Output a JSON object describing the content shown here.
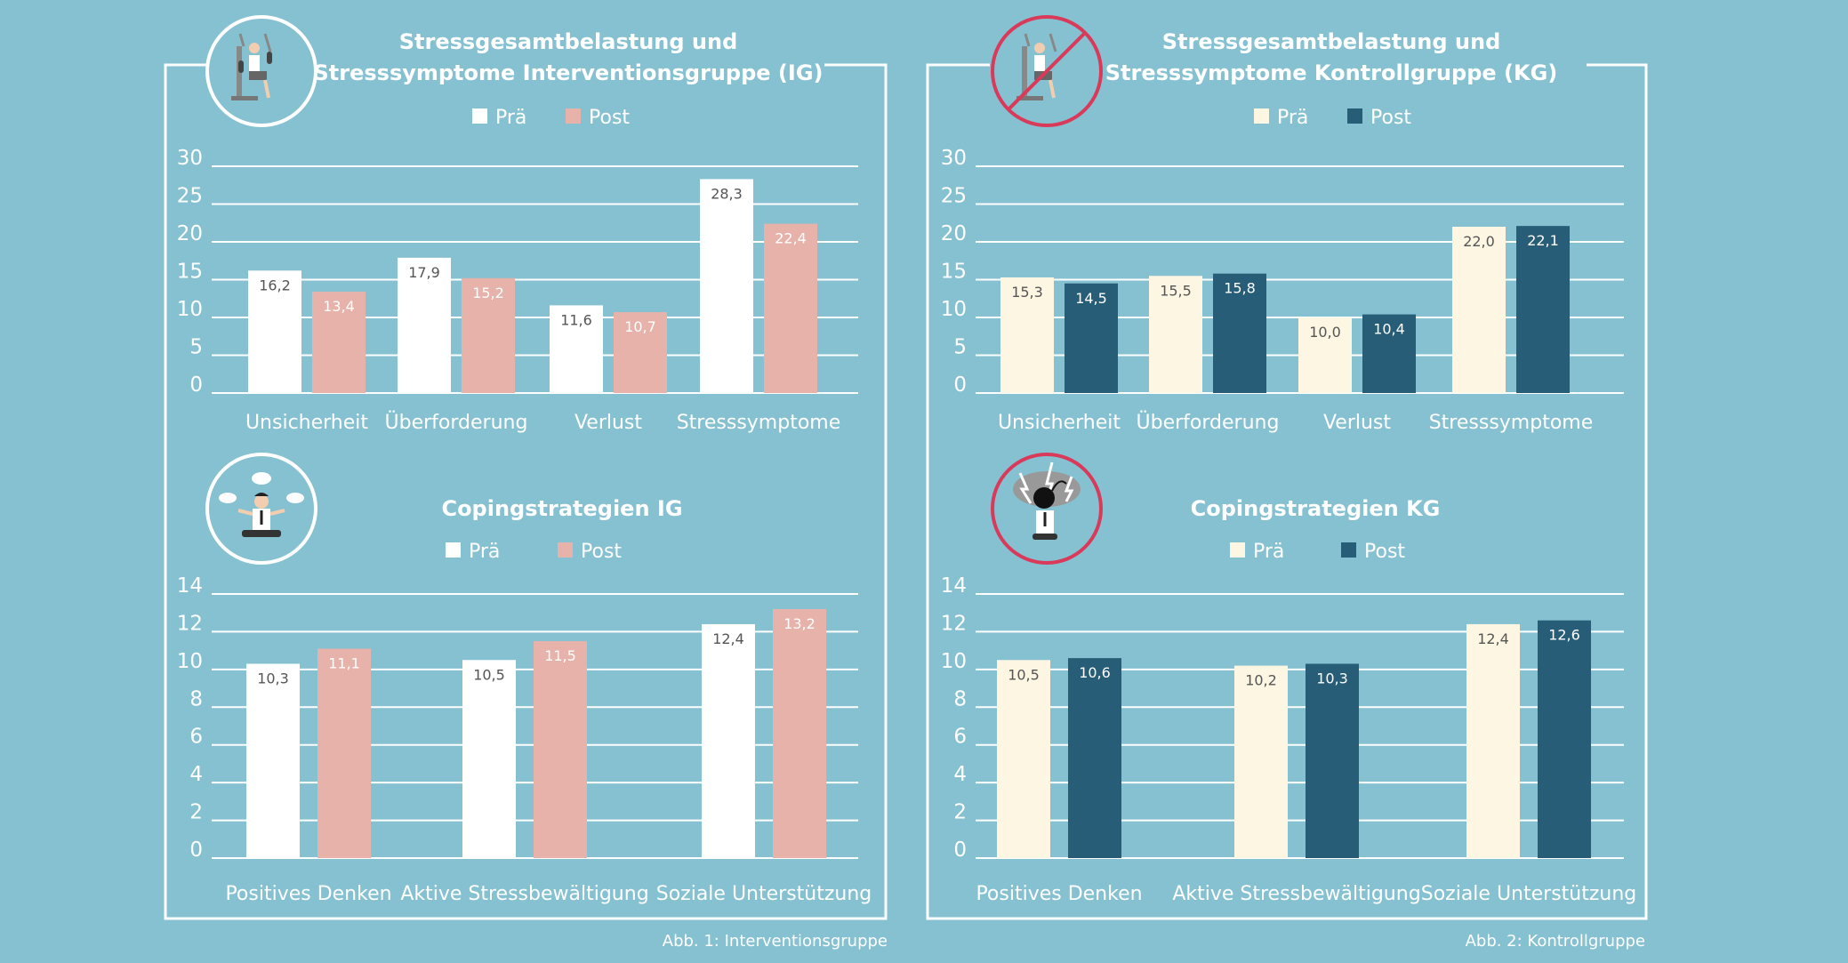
{
  "colors": {
    "background": "#85c1d0",
    "frame": "#ffffff",
    "ig_pre": "#ffffff",
    "ig_post": "#e7b2aa",
    "kg_pre": "#fdf6e3",
    "kg_post": "#275d77",
    "kg_icon_ring": "#d93a5a"
  },
  "captions": {
    "left": "Abb. 1: Interventionsgruppe",
    "right": "Abb. 2: Kontrollgruppe"
  },
  "icons": [
    "fitness-machine-icon",
    "no-fitness-icon",
    "relaxed-meditation-icon",
    "stressed-bomb-head-icon"
  ],
  "chart_data": [
    {
      "type": "bar",
      "title_lines": [
        "Stressgesamtbelastung und",
        "Stresssymptome Interventionsgruppe (IG)"
      ],
      "categories": [
        "Unsicherheit",
        "Überforderung",
        "Verlust",
        "Stresssymptome"
      ],
      "series": [
        {
          "name": "Prä",
          "values": [
            16.2,
            17.9,
            11.6,
            28.3
          ],
          "labels": [
            "16,2",
            "17,9",
            "11,6",
            "28,3"
          ],
          "color": "#ffffff",
          "label_color": "#555555"
        },
        {
          "name": "Post",
          "values": [
            13.4,
            15.2,
            10.7,
            22.4
          ],
          "labels": [
            "13,4",
            "15,2",
            "10,7",
            "22,4"
          ],
          "color": "#e7b2aa",
          "label_color": "#ffffff"
        }
      ],
      "ylim": [
        0,
        30
      ],
      "yticks": [
        "0",
        "5",
        "10",
        "15",
        "20",
        "25",
        "30"
      ],
      "grid": true,
      "legend": "top-center"
    },
    {
      "type": "bar",
      "title_lines": [
        "Stressgesamtbelastung und",
        "Stresssymptome Kontrollgruppe (KG)"
      ],
      "categories": [
        "Unsicherheit",
        "Überforderung",
        "Verlust",
        "Stresssymptome"
      ],
      "series": [
        {
          "name": "Prä",
          "values": [
            15.3,
            15.5,
            10.0,
            22.0
          ],
          "labels": [
            "15,3",
            "15,5",
            "10,0",
            "22,0"
          ],
          "color": "#fdf6e3",
          "label_color": "#555555"
        },
        {
          "name": "Post",
          "values": [
            14.5,
            15.8,
            10.4,
            22.1
          ],
          "labels": [
            "14,5",
            "15,8",
            "10,4",
            "22,1"
          ],
          "color": "#275d77",
          "label_color": "#ffffff"
        }
      ],
      "ylim": [
        0,
        30
      ],
      "yticks": [
        "0",
        "5",
        "10",
        "15",
        "20",
        "25",
        "30"
      ],
      "grid": true,
      "legend": "top-center"
    },
    {
      "type": "bar",
      "title_lines": [
        "Copingstrategien IG"
      ],
      "categories": [
        "Positives Denken",
        "Aktive Stressbewältigung",
        "Soziale Unterstützung"
      ],
      "series": [
        {
          "name": "Prä",
          "values": [
            10.3,
            10.5,
            12.4
          ],
          "labels": [
            "10,3",
            "10,5",
            "12,4"
          ],
          "color": "#ffffff",
          "label_color": "#555555"
        },
        {
          "name": "Post",
          "values": [
            11.1,
            11.5,
            13.2
          ],
          "labels": [
            "11,1",
            "11,5",
            "13,2"
          ],
          "color": "#e7b2aa",
          "label_color": "#ffffff"
        }
      ],
      "ylim": [
        0,
        14
      ],
      "yticks": [
        "0",
        "2",
        "4",
        "6",
        "8",
        "10",
        "12",
        "14"
      ],
      "grid": true,
      "legend": "top-center"
    },
    {
      "type": "bar",
      "title_lines": [
        "Copingstrategien KG"
      ],
      "categories": [
        "Positives Denken",
        "Aktive Stressbewältigung",
        "Soziale Unterstützung"
      ],
      "series": [
        {
          "name": "Prä",
          "values": [
            10.5,
            10.2,
            12.4
          ],
          "labels": [
            "10,5",
            "10,2",
            "12,4"
          ],
          "color": "#fdf6e3",
          "label_color": "#555555"
        },
        {
          "name": "Post",
          "values": [
            10.6,
            10.3,
            12.6
          ],
          "labels": [
            "10,6",
            "10,3",
            "12,6"
          ],
          "color": "#275d77",
          "label_color": "#ffffff"
        }
      ],
      "ylim": [
        0,
        14
      ],
      "yticks": [
        "0",
        "2",
        "4",
        "6",
        "8",
        "10",
        "12",
        "14"
      ],
      "grid": true,
      "legend": "top-center"
    }
  ]
}
